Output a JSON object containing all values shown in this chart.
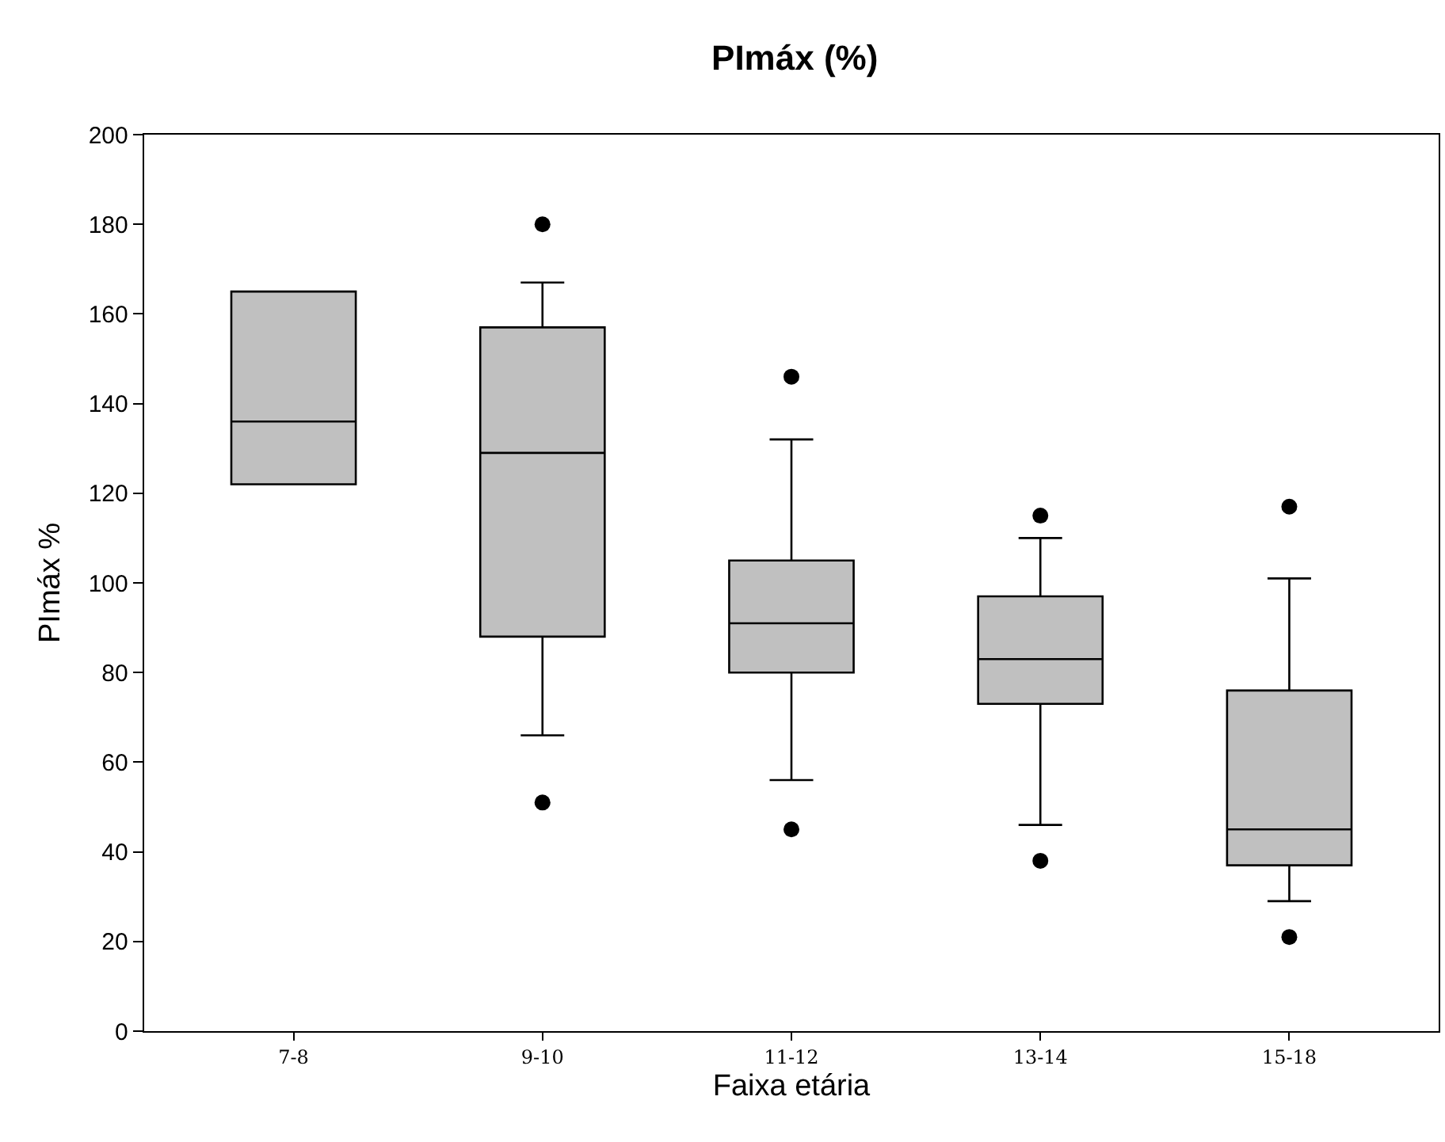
{
  "chart_data": {
    "type": "box",
    "title": "PImáx (%)",
    "xlabel": "Faixa etária",
    "ylabel": "PImáx %",
    "categories": [
      "7-8",
      "9-10",
      "11-12",
      "13-14",
      "15-18"
    ],
    "color": "#c0c0c0",
    "boxes": [
      {
        "low": 122,
        "q1": 122,
        "median": 136,
        "q3": 165,
        "high": 165
      },
      {
        "low": 66,
        "q1": 88,
        "median": 129,
        "q3": 157,
        "high": 167,
        "outliers": [
          180,
          51
        ]
      },
      {
        "low": 56,
        "q1": 80,
        "median": 91,
        "q3": 105,
        "high": 132,
        "outliers": [
          146,
          45
        ]
      },
      {
        "low": 46,
        "q1": 73,
        "median": 83,
        "q3": 97,
        "high": 110,
        "outliers": [
          115,
          38
        ]
      },
      {
        "low": 29,
        "q1": 37,
        "median": 45,
        "q3": 76,
        "high": 101,
        "outliers": [
          117,
          21
        ]
      }
    ],
    "ylim": [
      0,
      200
    ],
    "yticks": [
      0,
      20,
      40,
      60,
      80,
      100,
      120,
      140,
      160,
      180,
      200
    ],
    "grid": false,
    "marker": "circle"
  }
}
